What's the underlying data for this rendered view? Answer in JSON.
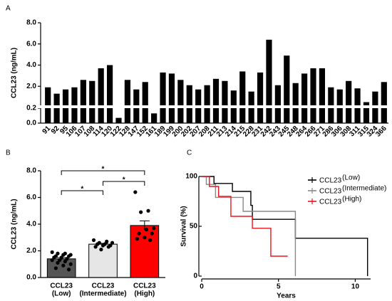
{
  "chart_data": [
    {
      "type": "broken_bar",
      "panel_label": "A",
      "y_label": "CCL23 (ng/mL)",
      "color": "#000000",
      "categories": [
        "91",
        "92",
        "95",
        "106",
        "107",
        "108",
        "114",
        "120",
        "122",
        "128",
        "147",
        "152",
        "161",
        "189",
        "199",
        "200",
        "202",
        "207",
        "208",
        "211",
        "213",
        "214",
        "215",
        "228",
        "231",
        "242",
        "243",
        "245",
        "248",
        "264",
        "266",
        "271",
        "286",
        "306",
        "308",
        "311",
        "315",
        "324",
        "366"
      ],
      "values": [
        1.9,
        1.3,
        1.7,
        1.9,
        2.6,
        2.5,
        3.7,
        4.0,
        0.07,
        2.6,
        1.7,
        2.4,
        0.13,
        3.3,
        3.2,
        2.6,
        2.1,
        1.7,
        2.1,
        2.7,
        2.5,
        1.6,
        3.4,
        1.5,
        3.3,
        6.4,
        2.1,
        4.9,
        2.3,
        3.2,
        3.7,
        3.7,
        1.9,
        1.7,
        2.5,
        1.8,
        0.5,
        1.5,
        2.4
      ],
      "ylim": [
        0,
        8
      ],
      "ybreak": 0.2,
      "yticks": [
        {
          "value": 0,
          "label": "0.0"
        },
        {
          "value": 0.2,
          "label": "0.2"
        },
        {
          "value": 2,
          "label": "2.0"
        },
        {
          "value": 4,
          "label": "4.0"
        },
        {
          "value": 6,
          "label": "6.0"
        },
        {
          "value": 8,
          "label": "8.0"
        }
      ]
    },
    {
      "type": "bar_points",
      "panel_label": "B",
      "y_label": "CCL23 (ng/mL)",
      "categories": [
        "CCL23",
        "CCL23",
        "CCL23"
      ],
      "subcategories": [
        "(Low)",
        "(Intermediate)",
        "(High)"
      ],
      "values": [
        1.4,
        2.5,
        3.9
      ],
      "errors": [
        0.1,
        0.06,
        0.35
      ],
      "colors": [
        "#555555",
        "#e6e6e6",
        "#ff0000"
      ],
      "points": [
        [
          1.9,
          1.8,
          1.8,
          1.7,
          1.7,
          1.6,
          1.6,
          1.5,
          1.5,
          1.4,
          1.3,
          1.3,
          1.2,
          1.1,
          1.0,
          0.9,
          0.7,
          0.6
        ],
        [
          2.8,
          2.7,
          2.6,
          2.6,
          2.5,
          2.5,
          2.4,
          2.4,
          2.3,
          2.3,
          2.1
        ],
        [
          6.4,
          5.0,
          4.9,
          3.7,
          3.6,
          3.3,
          3.3,
          3.0,
          2.9,
          2.8
        ]
      ],
      "annotations": [
        "*",
        "*",
        "*"
      ],
      "ylim": [
        0,
        8
      ],
      "yticks": [
        {
          "value": 0,
          "label": "0.0"
        },
        {
          "value": 2,
          "label": "2.0"
        },
        {
          "value": 4,
          "label": "4.0"
        },
        {
          "value": 6,
          "label": "6.0"
        },
        {
          "value": 8,
          "label": "8.0"
        }
      ]
    },
    {
      "type": "step",
      "panel_label": "C",
      "x_label": "Years",
      "y_label": "Survival (%)",
      "series": [
        {
          "name": "CCL23",
          "superscript": "(Low)",
          "color": "#000000",
          "x": [
            0,
            0.8,
            2.0,
            3.2,
            3.3,
            6.1,
            10.8
          ],
          "values": [
            100,
            93,
            85,
            71,
            57,
            38,
            0
          ]
        },
        {
          "name": "CCL23",
          "superscript": "(Intermediate)",
          "color": "#888888",
          "x": [
            0,
            0.3,
            0.9,
            2.7,
            6.1
          ],
          "values": [
            100,
            92,
            79,
            65,
            0
          ]
        },
        {
          "name": "CCL23",
          "superscript": "(High)",
          "color": "#e8141b",
          "x": [
            0,
            0.5,
            1.1,
            1.9,
            3.3,
            4.5,
            5.6
          ],
          "values": [
            100,
            90,
            80,
            60,
            48,
            20,
            20
          ]
        }
      ],
      "xlim": [
        0,
        11
      ],
      "ylim": [
        0,
        100
      ],
      "xticks": [
        0,
        5,
        10
      ],
      "yticks": [
        0,
        50,
        100
      ]
    }
  ]
}
